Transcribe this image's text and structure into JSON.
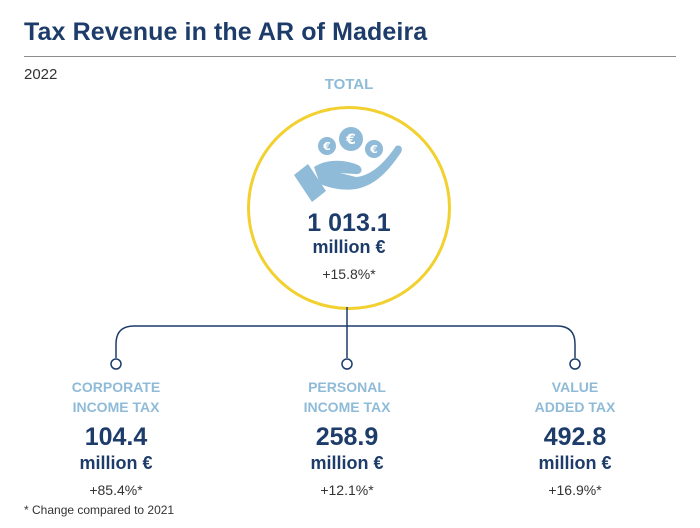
{
  "title": "Tax Revenue in the AR of Madeira",
  "year": "2022",
  "total": {
    "label": "TOTAL",
    "value": "1 013.1",
    "unit": "million €",
    "change": "+15.8%*"
  },
  "categories": [
    {
      "label_line1": "CORPORATE",
      "label_line2": "INCOME TAX",
      "value": "104.4",
      "unit": "million €",
      "change": "+85.4%*"
    },
    {
      "label_line1": "PERSONAL",
      "label_line2": "INCOME TAX",
      "value": "258.9",
      "unit": "million €",
      "change": "+12.1%*"
    },
    {
      "label_line1": "VALUE",
      "label_line2": "ADDED TAX",
      "value": "492.8",
      "unit": "million €",
      "change": "+16.9%*"
    }
  ],
  "footnote": "* Change compared to 2021",
  "icons": {
    "total": "hand-with-euro-coins-icon"
  },
  "colors": {
    "title": "#1d3c6a",
    "label": "#8fbbd8",
    "circle_border": "#f2d02f",
    "icon": "#8fbbd8",
    "connector": "#1d3c6a"
  }
}
